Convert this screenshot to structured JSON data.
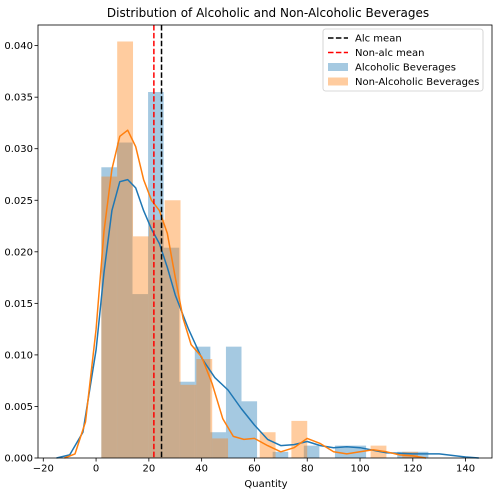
{
  "chart_data": {
    "type": "bar",
    "title": "Distribution of Alcoholic and Non-Alcoholic Beverages",
    "xlabel": "Quantity",
    "ylabel": "",
    "xlim": [
      -22,
      150
    ],
    "ylim": [
      0,
      0.042
    ],
    "xticks": [
      -20,
      0,
      20,
      40,
      60,
      80,
      100,
      120,
      140
    ],
    "yticks": [
      0.0,
      0.005,
      0.01,
      0.015,
      0.02,
      0.025,
      0.03,
      0.035,
      0.04
    ],
    "xtick_labels": [
      "−20",
      "0",
      "20",
      "40",
      "60",
      "80",
      "100",
      "120",
      "140"
    ],
    "ytick_labels": [
      "0.000",
      "0.005",
      "0.010",
      "0.015",
      "0.020",
      "0.025",
      "0.030",
      "0.035",
      "0.040"
    ],
    "grid": false,
    "legend_position": "top-right",
    "series": [
      {
        "name": "Alcoholic Beverages",
        "kind": "hist",
        "color": "#1f77b4",
        "bins": [
          {
            "x0": 2,
            "x1": 7.9,
            "y": 0.0282
          },
          {
            "x0": 7.9,
            "x1": 13.8,
            "y": 0.0306
          },
          {
            "x0": 13.8,
            "x1": 19.7,
            "y": 0.0159
          },
          {
            "x0": 19.7,
            "x1": 25.6,
            "y": 0.0355
          },
          {
            "x0": 25.6,
            "x1": 31.5,
            "y": 0.0204
          },
          {
            "x0": 31.5,
            "x1": 37.4,
            "y": 0.0074
          },
          {
            "x0": 37.4,
            "x1": 43.3,
            "y": 0.0108
          },
          {
            "x0": 43.3,
            "x1": 49.2,
            "y": 0.0025
          },
          {
            "x0": 49.2,
            "x1": 55.1,
            "y": 0.0108
          },
          {
            "x0": 55.1,
            "x1": 61.0,
            "y": 0.0055
          },
          {
            "x0": 61.0,
            "x1": 66.9,
            "y": 0.0
          },
          {
            "x0": 66.9,
            "x1": 72.8,
            "y": 0.0006
          },
          {
            "x0": 72.8,
            "x1": 78.7,
            "y": 0.0
          },
          {
            "x0": 78.7,
            "x1": 84.6,
            "y": 0.0012
          },
          {
            "x0": 84.6,
            "x1": 90.5,
            "y": 0.0
          },
          {
            "x0": 90.5,
            "x1": 96.4,
            "y": 0.0012
          },
          {
            "x0": 96.4,
            "x1": 102.3,
            "y": 0.0012
          },
          {
            "x0": 102.3,
            "x1": 108.2,
            "y": 0.0
          },
          {
            "x0": 108.2,
            "x1": 114.1,
            "y": 0.0
          },
          {
            "x0": 114.1,
            "x1": 120.0,
            "y": 0.0006
          },
          {
            "x0": 120.0,
            "x1": 125.9,
            "y": 0.0006
          }
        ],
        "kde": {
          "x": [
            -15,
            -10,
            -5,
            0,
            3,
            6,
            9,
            12,
            15,
            18,
            21,
            24,
            27,
            30,
            35,
            40,
            45,
            50,
            55,
            60,
            65,
            70,
            75,
            80,
            85,
            90,
            95,
            100,
            110,
            120,
            130,
            140,
            145
          ],
          "y": [
            0.0,
            0.0003,
            0.0025,
            0.0105,
            0.018,
            0.024,
            0.0268,
            0.027,
            0.0262,
            0.024,
            0.0222,
            0.0208,
            0.0185,
            0.0158,
            0.0125,
            0.0097,
            0.0078,
            0.0066,
            0.0048,
            0.0032,
            0.0018,
            0.0012,
            0.0013,
            0.0016,
            0.0012,
            0.001,
            0.0011,
            0.001,
            0.0005,
            0.0004,
            0.0004,
            0.0001,
            0.0
          ]
        }
      },
      {
        "name": "Non-Alcoholic Beverages",
        "kind": "hist",
        "color": "#ff7f0e",
        "bins": [
          {
            "x0": 2,
            "x1": 8.0,
            "y": 0.0273
          },
          {
            "x0": 8.0,
            "x1": 14.0,
            "y": 0.0404
          },
          {
            "x0": 14.0,
            "x1": 20.0,
            "y": 0.0215
          },
          {
            "x0": 20.0,
            "x1": 26.0,
            "y": 0.0231
          },
          {
            "x0": 26.0,
            "x1": 32.0,
            "y": 0.025
          },
          {
            "x0": 32.0,
            "x1": 38.0,
            "y": 0.0071
          },
          {
            "x0": 38.0,
            "x1": 44.0,
            "y": 0.0096
          },
          {
            "x0": 44.0,
            "x1": 50.0,
            "y": 0.0019
          },
          {
            "x0": 50.0,
            "x1": 56.0,
            "y": 0.0
          },
          {
            "x0": 56.0,
            "x1": 62.0,
            "y": 0.0
          },
          {
            "x0": 62.0,
            "x1": 68.0,
            "y": 0.0025
          },
          {
            "x0": 68.0,
            "x1": 74.0,
            "y": 0.0
          },
          {
            "x0": 74.0,
            "x1": 80.0,
            "y": 0.0036
          },
          {
            "x0": 80.0,
            "x1": 86.0,
            "y": 0.0
          },
          {
            "x0": 86.0,
            "x1": 92.0,
            "y": 0.0
          },
          {
            "x0": 92.0,
            "x1": 98.0,
            "y": 0.0
          },
          {
            "x0": 98.0,
            "x1": 104.0,
            "y": 0.0
          },
          {
            "x0": 104.0,
            "x1": 110.0,
            "y": 0.0012
          },
          {
            "x0": 110.0,
            "x1": 116.0,
            "y": 0.0
          },
          {
            "x0": 116.0,
            "x1": 122.0,
            "y": 0.0006
          }
        ],
        "kde": {
          "x": [
            -12,
            -8,
            -4,
            0,
            3,
            6,
            9,
            12,
            15,
            18,
            21,
            24,
            27,
            30,
            33,
            36,
            40,
            44,
            48,
            52,
            56,
            60,
            65,
            70,
            75,
            80,
            85,
            90,
            95,
            100,
            105,
            110,
            115,
            120,
            125
          ],
          "y": [
            0.0,
            0.0004,
            0.0035,
            0.0125,
            0.022,
            0.028,
            0.0312,
            0.0318,
            0.0302,
            0.027,
            0.025,
            0.024,
            0.0218,
            0.0175,
            0.0135,
            0.011,
            0.0098,
            0.0072,
            0.0038,
            0.0021,
            0.0018,
            0.0019,
            0.0012,
            0.0006,
            0.001,
            0.0019,
            0.0014,
            0.0006,
            0.0004,
            0.0006,
            0.0008,
            0.0006,
            0.0003,
            0.0002,
            0.0
          ]
        }
      }
    ],
    "lines": [
      {
        "name": "Alc mean",
        "x": 24.8,
        "color": "#000000",
        "dash": "dashed"
      },
      {
        "name": "Non-alc mean",
        "x": 21.9,
        "color": "#ff0000",
        "dash": "dashed"
      }
    ]
  }
}
